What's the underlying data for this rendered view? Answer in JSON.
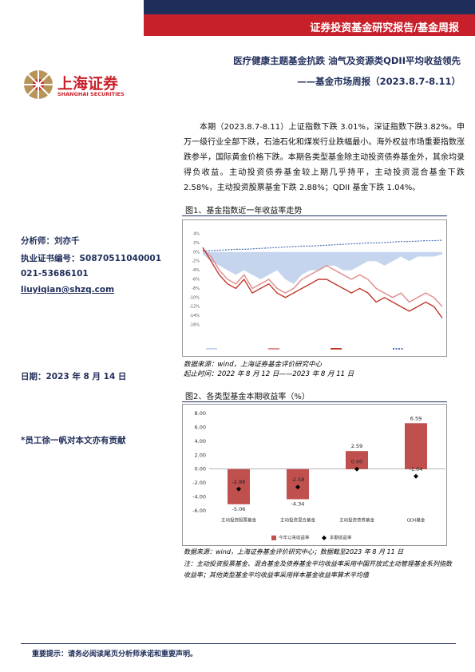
{
  "header": {
    "report_type": "证券投资基金研究报告/基金周报",
    "logo_cn": "上海证券",
    "logo_en": "SHANGHAI SECURITIES",
    "title": "医疗健康主题基金抗跌 油气及资源类QDII平均收益领先",
    "subtitle": "——基金市场周报（2023.8.7-8.11）"
  },
  "sidebar": {
    "analyst": "分析师：刘亦千",
    "license": "执业证书编号：S0870511040001",
    "phone": "021-53686101",
    "email": "liuyiqian@shzq.com",
    "date": "日期：2023 年 8 月 14 日",
    "contributor": "*员工徐一帆对本文亦有贡献"
  },
  "body": "本期（2023.8.7-8.11）上证指数下跌 3.01%，深证指数下跌3.82%。申万一级行业全部下跌，石油石化和煤炭行业跌幅最小。海外权益市场重要指数涨跌参半，国际黄金价格下跌。本期各类型基金除主动投资债券基金外，其余均录得负收益。主动投资债券基金较上期几乎持平，主动投资混合基金下跌 2.58%，主动投资股票基金下跌 2.88%；QDII 基金下跌 1.04%。",
  "figures": [
    {
      "caption": "图1、基金指数近一年收益率走势",
      "source": "数据来源：wind，上海证券基金评价研究中心",
      "note": "起止时间：2022 年 8 月 12 日——2023 年 8 月 11 日"
    },
    {
      "caption": "图2、各类型基金本期收益率（%）",
      "source": "数据来源：wind，上海证券基金评价研究中心；数据截至2023 年 8 月 11 日",
      "note": "注：主动投资股票基金、混合基金及债券基金平均收益率采用中国开放式主动管理基金系列指数收益率；其他类型基金平均收益率采用样本基金收益率算术平均值"
    }
  ],
  "footer": "重要提示：请务必阅读尾页分析师承诺和重要声明。",
  "chart_data": [
    {
      "type": "line",
      "ylim": [
        -16,
        4
      ],
      "yticks": [
        {
          "value": 4,
          "label": "4%"
        },
        {
          "value": 2,
          "label": "2%"
        },
        {
          "value": 0,
          "label": "0%"
        },
        {
          "value": -2,
          "label": "-2%"
        },
        {
          "value": -4,
          "label": "-4%"
        },
        {
          "value": -6,
          "label": "-6%"
        },
        {
          "value": -8,
          "label": "-8%"
        },
        {
          "value": -10,
          "label": "-10%"
        },
        {
          "value": -12,
          "label": "-12%"
        },
        {
          "value": -14,
          "label": "-14%"
        },
        {
          "value": -16,
          "label": "-16%"
        }
      ],
      "series": [
        {
          "color": "#c5d5ee",
          "style": "area",
          "values": [
            -0.5,
            -2,
            -3,
            -4,
            -5,
            -4,
            -5,
            -6,
            -5,
            -4,
            -6,
            -7,
            -5,
            -4,
            -4,
            -3,
            -3,
            -4,
            -4,
            -3,
            -2,
            -2,
            -3,
            -2,
            -1,
            -2,
            -1,
            -1,
            -1,
            -0.5
          ]
        },
        {
          "color": "#e08a8a",
          "style": "line",
          "values": [
            0.5,
            -1,
            -4,
            -6,
            -7,
            -5,
            -8,
            -7,
            -6,
            -8,
            -9,
            -8,
            -6,
            -5,
            -4,
            -3,
            -4,
            -5,
            -6,
            -5,
            -6,
            -8,
            -9,
            -10,
            -9,
            -11,
            -10,
            -9,
            -10,
            -12
          ]
        },
        {
          "color": "#c0392b",
          "style": "line",
          "values": [
            1,
            -2,
            -5,
            -7,
            -8,
            -6,
            -9,
            -8,
            -7,
            -9,
            -10,
            -9,
            -8,
            -7,
            -6,
            -6,
            -7,
            -8,
            -9,
            -8,
            -9,
            -11,
            -10,
            -11,
            -12,
            -13,
            -12,
            -11,
            -12,
            -14.5
          ]
        },
        {
          "color": "#4a6fb5",
          "style": "dotted",
          "values": [
            0.2,
            0.3,
            0.4,
            0.5,
            0.6,
            0.6,
            0.7,
            0.8,
            0.9,
            1,
            1.1,
            1.2,
            1.3,
            1.3,
            1.4,
            1.5,
            1.6,
            1.7,
            1.8,
            1.9,
            2,
            2,
            2.1,
            2.2,
            2.3,
            2.3,
            2.4,
            2.5,
            2.5,
            2.6
          ]
        }
      ]
    },
    {
      "type": "bar",
      "categories": [
        "主动投资股票基金",
        "主动投资混合基金",
        "主动投资债券基金",
        "QDII基金"
      ],
      "ylim": [
        -6,
        8
      ],
      "yticks": [
        {
          "value": 8,
          "label": "8.00"
        },
        {
          "value": 6,
          "label": "6.00"
        },
        {
          "value": 4,
          "label": "4.00"
        },
        {
          "value": 2,
          "label": "2.00"
        },
        {
          "value": 0,
          "label": "0.00"
        },
        {
          "value": -2,
          "label": "-2.00"
        },
        {
          "value": -4,
          "label": "-4.00"
        },
        {
          "value": -6,
          "label": "-6.00"
        }
      ],
      "series": [
        {
          "name": "今年以来收益率",
          "color": "#c0504d",
          "values": [
            -5.06,
            -4.34,
            2.59,
            6.59
          ],
          "value_labels": [
            "-5.06",
            "-4.34",
            "2.59",
            "6.59"
          ]
        },
        {
          "name": "本期收益率",
          "color": "#000000",
          "values": [
            -2.88,
            -2.58,
            0,
            -1.04
          ],
          "value_labels": [
            "-2.88",
            "-2.58",
            "0.00",
            "-1.04"
          ]
        }
      ]
    }
  ]
}
